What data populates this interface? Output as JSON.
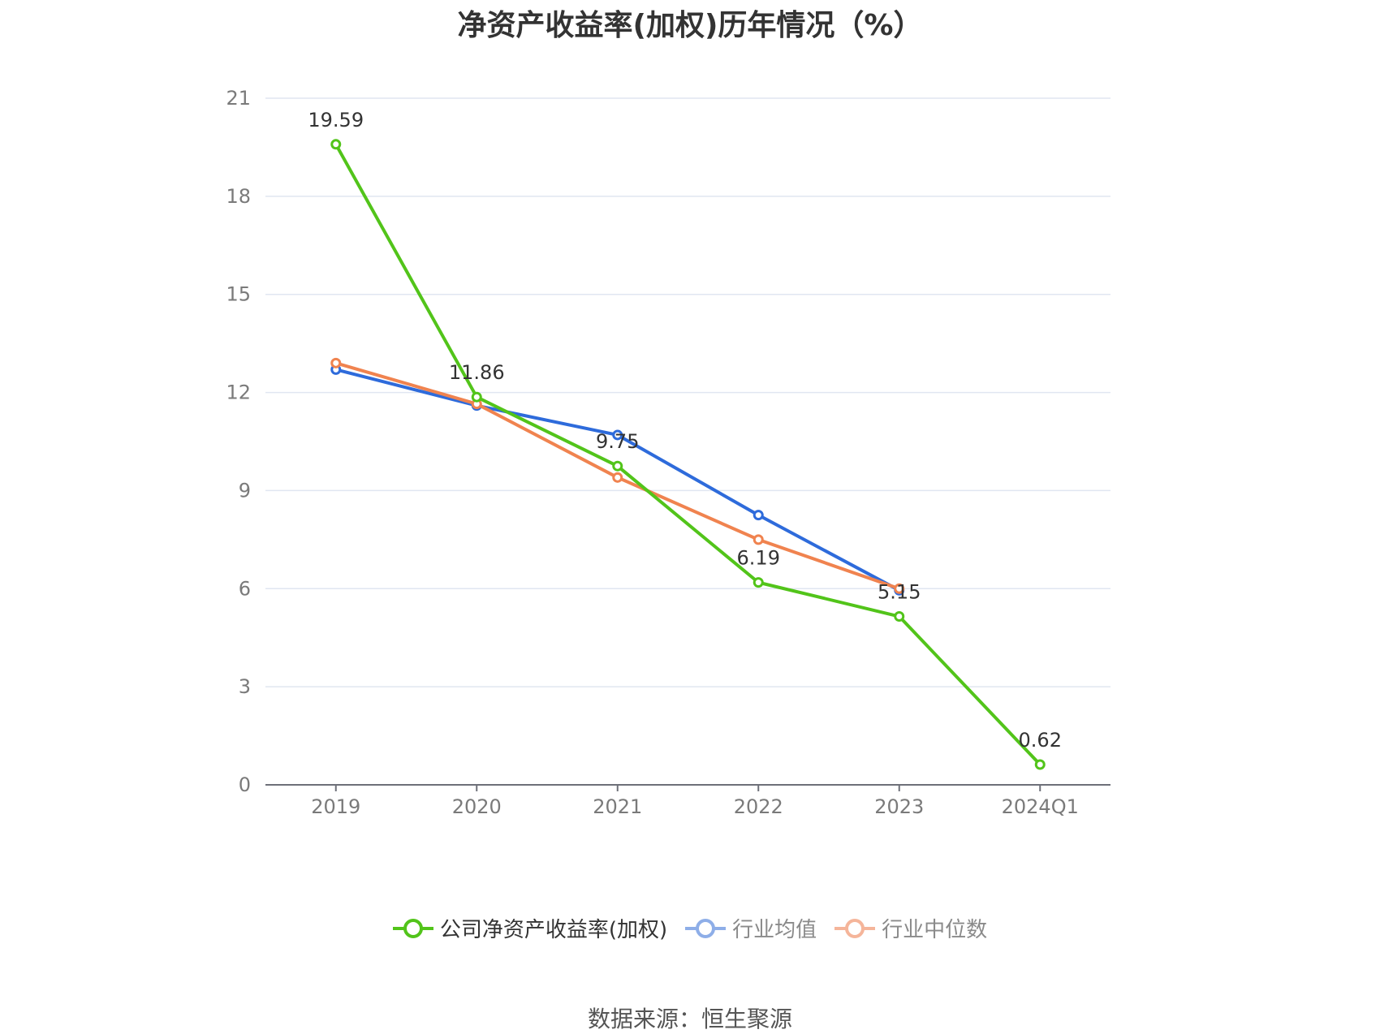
{
  "chart_data": {
    "type": "line",
    "title": "净资产收益率(加权)历年情况（%）",
    "categories": [
      "2019",
      "2020",
      "2021",
      "2022",
      "2023",
      "2024Q1"
    ],
    "ylim": [
      0,
      21
    ],
    "yticks": [
      0,
      3,
      6,
      9,
      12,
      15,
      18,
      21
    ],
    "grid": true,
    "legend_position": "bottom",
    "series": [
      {
        "name": "公司净资产收益率(加权)",
        "color": "#52c41a",
        "values": [
          19.59,
          11.86,
          9.75,
          6.19,
          5.15,
          0.62
        ],
        "labels": [
          "19.59",
          "11.86",
          "9.75",
          "6.19",
          "5.15",
          "0.62"
        ]
      },
      {
        "name": "行业均值",
        "color": "#2e6bdb",
        "legend_color": "#8eaee8",
        "values": [
          12.7,
          11.6,
          10.7,
          8.25,
          5.95,
          null
        ]
      },
      {
        "name": "行业中位数",
        "color": "#f0834f",
        "legend_color": "#f5b59a",
        "values": [
          12.9,
          11.65,
          9.4,
          7.5,
          6.0,
          null
        ]
      }
    ],
    "source": "数据来源：恒生聚源"
  }
}
